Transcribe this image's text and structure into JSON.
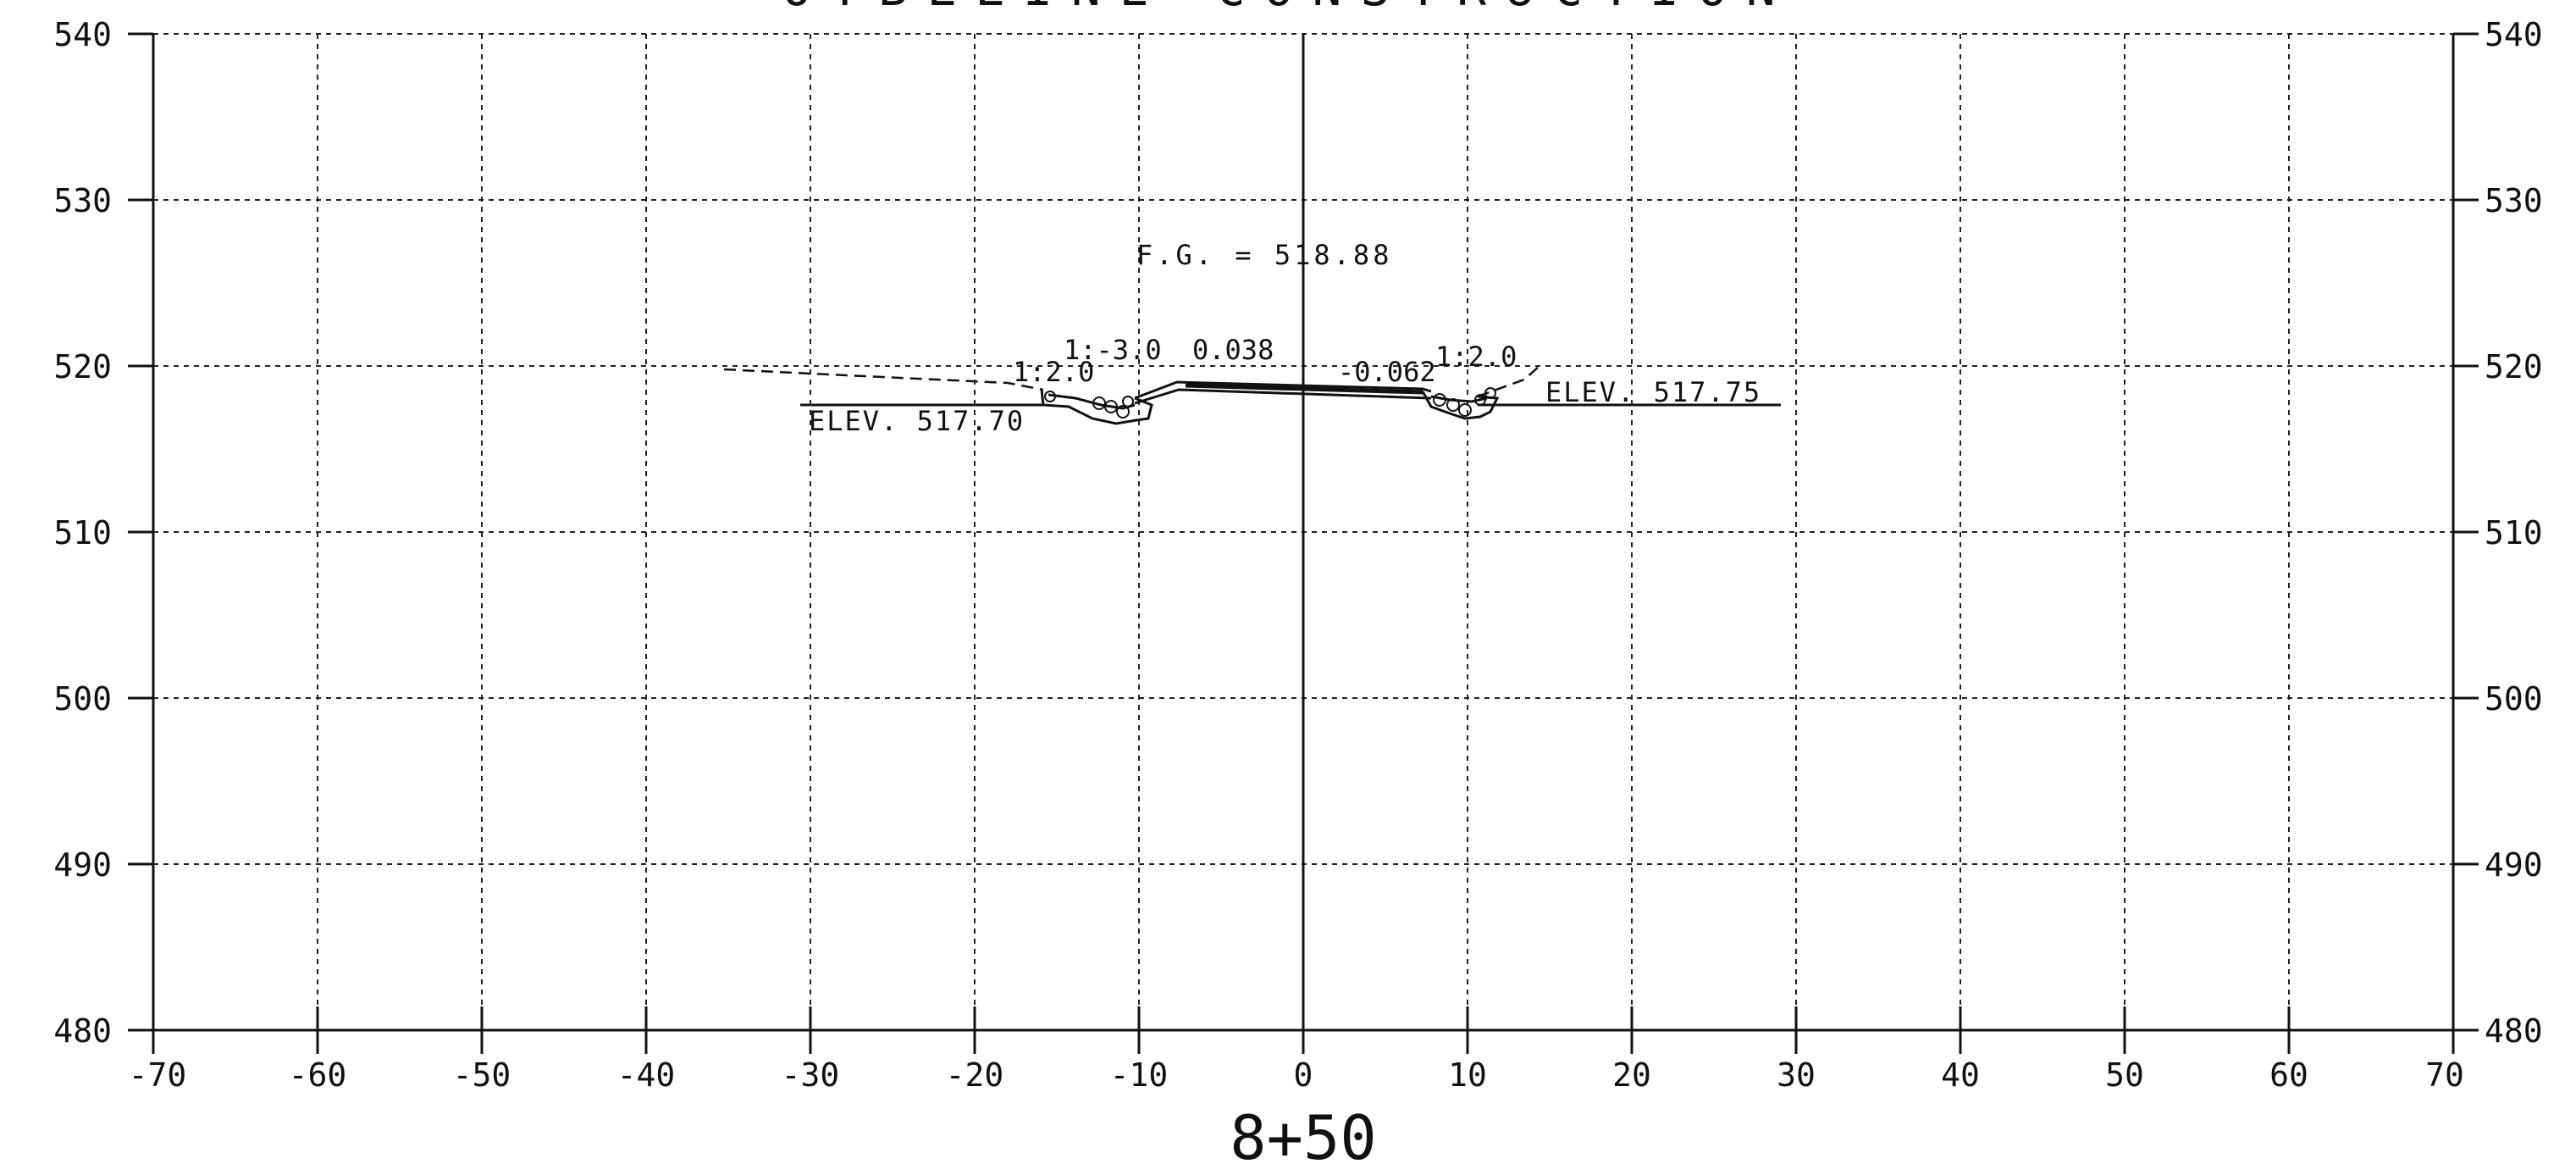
{
  "title": "OYBLLINE CONSTRUCTION",
  "station": "8+50",
  "x_ticks": [
    "-70",
    "-60",
    "-50",
    "-40",
    "-30",
    "-20",
    "-10",
    "0",
    "10",
    "20",
    "30",
    "40",
    "50",
    "60",
    "70"
  ],
  "y_ticks_left": [
    "540",
    "530",
    "520",
    "510",
    "500",
    "490",
    "480"
  ],
  "y_ticks_right": [
    "540",
    "530",
    "520",
    "510",
    "500",
    "490",
    "480"
  ],
  "annotations": {
    "finished_grade": "F.G. = 518.88",
    "left_elev": "ELEV. 517.70",
    "right_elev": "ELEV. 517.75",
    "slope_left_upper": "1:-3.0",
    "slope_left_lower": "1:2.0",
    "cross_slope_left": "0.038",
    "cross_slope_right": "-0.062",
    "slope_right": "1:2.0"
  },
  "colors": {
    "ink": "#111111",
    "paper": "#ffffff"
  }
}
